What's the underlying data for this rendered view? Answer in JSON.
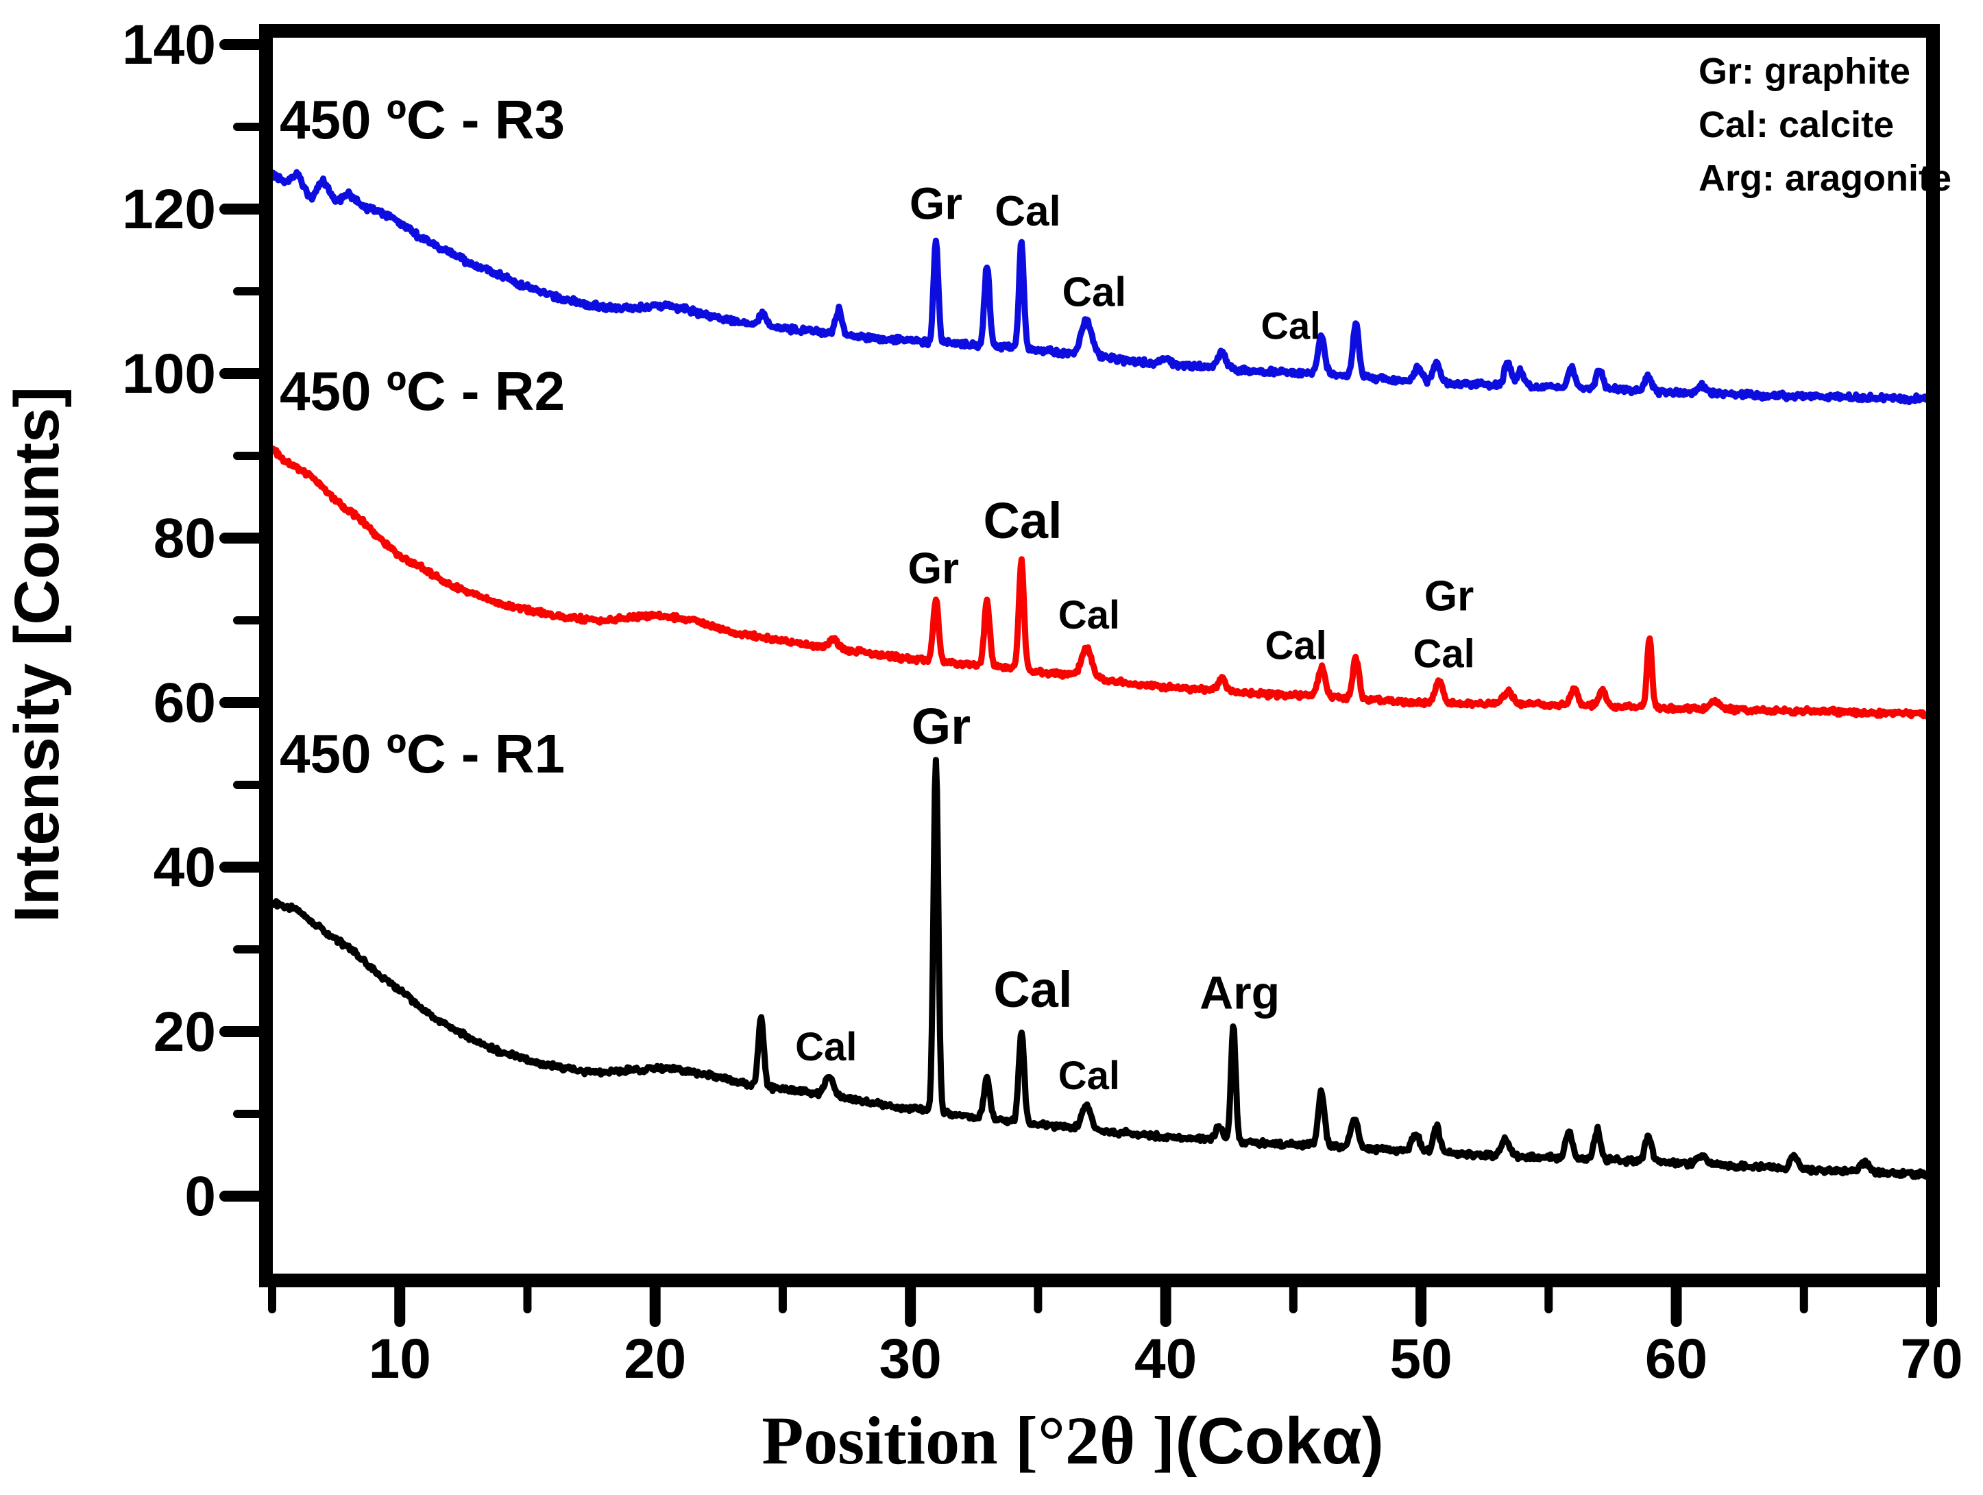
{
  "figure": {
    "ylabel": "Intensity [Counts]",
    "xlabel_serif": "Position [°2θ ]",
    "xlabel_sans": "(Cokα)"
  },
  "legend": {
    "items": [
      "Gr: graphite",
      "Cal: calcite",
      "Arg: aragonite"
    ]
  },
  "chart_data": {
    "type": "line",
    "title": "",
    "xlabel": "Position [°2θ ](Cokα)",
    "ylabel": "Intensity [Counts]",
    "xlim": [
      5,
      70
    ],
    "ylim": [
      -11,
      142
    ],
    "x_ticks": [
      10,
      20,
      30,
      40,
      50,
      60,
      70
    ],
    "x_minor_ticks": [
      5,
      15,
      25,
      35,
      45,
      55,
      65
    ],
    "y_ticks": [
      0,
      20,
      40,
      60,
      80,
      100,
      120,
      140
    ],
    "y_minor_ticks": [
      10,
      30,
      50,
      70,
      90,
      110,
      130
    ],
    "grid": false,
    "legend_position": "top-right",
    "legend_notes": [
      "Gr: graphite",
      "Cal: calcite",
      "Arg: aragonite"
    ],
    "series": [
      {
        "name": "450 ºC - R1",
        "label": "450 ºC - R1",
        "color": "#000000",
        "noise": 0.42,
        "seed": 3.1,
        "baseline": [
          [
            5,
            36
          ],
          [
            6,
            34.5
          ],
          [
            7,
            32.5
          ],
          [
            8,
            30
          ],
          [
            9,
            27.5
          ],
          [
            10,
            25
          ],
          [
            11,
            22.5
          ],
          [
            12,
            20.5
          ],
          [
            13,
            18.8
          ],
          [
            14,
            17.5
          ],
          [
            15,
            16.5
          ],
          [
            16,
            15.8
          ],
          [
            17,
            15.2
          ],
          [
            18,
            15
          ],
          [
            19,
            15.3
          ],
          [
            20,
            15.6
          ],
          [
            21,
            15.3
          ],
          [
            22,
            14.8
          ],
          [
            23,
            14
          ],
          [
            24,
            13.4
          ],
          [
            25,
            13
          ],
          [
            26,
            12.6
          ],
          [
            27,
            12.2
          ],
          [
            28,
            11.6
          ],
          [
            29,
            11
          ],
          [
            30,
            10.6
          ],
          [
            31,
            10.3
          ],
          [
            32,
            9.8
          ],
          [
            33,
            9.4
          ],
          [
            34,
            9.1
          ],
          [
            35,
            8.8
          ],
          [
            36,
            8.4
          ],
          [
            37,
            8.1
          ],
          [
            38,
            7.8
          ],
          [
            39,
            7.5
          ],
          [
            40,
            7.2
          ],
          [
            41,
            7.0
          ],
          [
            42,
            6.9
          ],
          [
            43,
            6.6
          ],
          [
            44,
            6.4
          ],
          [
            45,
            6.3
          ],
          [
            46,
            6.2
          ],
          [
            47,
            6.0
          ],
          [
            48,
            5.8
          ],
          [
            50,
            5.4
          ],
          [
            52,
            5.1
          ],
          [
            54,
            4.8
          ],
          [
            56,
            4.6
          ],
          [
            58,
            4.3
          ],
          [
            60,
            4.0
          ],
          [
            62,
            3.7
          ],
          [
            64,
            3.4
          ],
          [
            66,
            3.1
          ],
          [
            68,
            2.8
          ],
          [
            70,
            2.6
          ]
        ],
        "peaks": [
          [
            24.15,
            8.5,
            0.15
          ],
          [
            26.8,
            2.3,
            0.22
          ],
          [
            31.0,
            43,
            0.13
          ],
          [
            33.0,
            5,
            0.16
          ],
          [
            34.35,
            11,
            0.15
          ],
          [
            36.9,
            3,
            0.25
          ],
          [
            42.1,
            1.6,
            0.18
          ],
          [
            42.65,
            14,
            0.13
          ],
          [
            46.1,
            6.5,
            0.17
          ],
          [
            47.4,
            3.5,
            0.2
          ],
          [
            49.8,
            2.2,
            0.2
          ],
          [
            50.6,
            3.2,
            0.18
          ],
          [
            53.3,
            2.0,
            0.22
          ],
          [
            55.8,
            3.2,
            0.18
          ],
          [
            56.9,
            3.6,
            0.18
          ],
          [
            58.9,
            3.2,
            0.18
          ],
          [
            61.0,
            1.0,
            0.25
          ],
          [
            64.6,
            1.6,
            0.2
          ],
          [
            67.4,
            1.2,
            0.25
          ]
        ],
        "annotations": [
          {
            "text": "Cal",
            "x": 26.7,
            "y": 16.5,
            "size": 58
          },
          {
            "text": "Gr",
            "x": 31.2,
            "y": 55.0,
            "size": 74
          },
          {
            "text": "Cal",
            "x": 34.8,
            "y": 23.0,
            "size": 74
          },
          {
            "text": "Cal",
            "x": 37.0,
            "y": 13.0,
            "size": 58
          },
          {
            "text": "Arg",
            "x": 42.9,
            "y": 22.8,
            "size": 68
          }
        ]
      },
      {
        "name": "450 ºC - R2",
        "label": "450 ºC - R2",
        "color": "#f80400",
        "noise": 0.4,
        "seed": 7.7,
        "baseline": [
          [
            5,
            91
          ],
          [
            6,
            88.5
          ],
          [
            7,
            86
          ],
          [
            8,
            83.5
          ],
          [
            9,
            80.5
          ],
          [
            10,
            78
          ],
          [
            11,
            76
          ],
          [
            12,
            74.3
          ],
          [
            13,
            73
          ],
          [
            14,
            72
          ],
          [
            15,
            71.2
          ],
          [
            16,
            70.6
          ],
          [
            17,
            70.2
          ],
          [
            18,
            70
          ],
          [
            19,
            70.3
          ],
          [
            20,
            70.6
          ],
          [
            21,
            70.3
          ],
          [
            22,
            69.5
          ],
          [
            23,
            68.5
          ],
          [
            24,
            68
          ],
          [
            25,
            67.5
          ],
          [
            26,
            67
          ],
          [
            27,
            66.6
          ],
          [
            28,
            66.2
          ],
          [
            29,
            65.7
          ],
          [
            30,
            65.3
          ],
          [
            31,
            65
          ],
          [
            32,
            64.7
          ],
          [
            33,
            64.4
          ],
          [
            34,
            64.2
          ],
          [
            35,
            63.8
          ],
          [
            36,
            63.4
          ],
          [
            37,
            63
          ],
          [
            38,
            62.6
          ],
          [
            39,
            62.2
          ],
          [
            40,
            61.9
          ],
          [
            41,
            61.7
          ],
          [
            42,
            61.5
          ],
          [
            43,
            61.2
          ],
          [
            44,
            61
          ],
          [
            45,
            60.9
          ],
          [
            46,
            60.7
          ],
          [
            47,
            60.5
          ],
          [
            48,
            60.3
          ],
          [
            50,
            60
          ],
          [
            52,
            59.9
          ],
          [
            54,
            59.8
          ],
          [
            56,
            59.7
          ],
          [
            58,
            59.5
          ],
          [
            60,
            59.3
          ],
          [
            62,
            59.2
          ],
          [
            64,
            59
          ],
          [
            66,
            58.9
          ],
          [
            68,
            58.7
          ],
          [
            70,
            58.6
          ]
        ],
        "peaks": [
          [
            27.0,
            1.2,
            0.25
          ],
          [
            31.0,
            7.5,
            0.15
          ],
          [
            33.0,
            7.8,
            0.15
          ],
          [
            34.35,
            13.3,
            0.14
          ],
          [
            36.9,
            3.6,
            0.28
          ],
          [
            42.2,
            1.6,
            0.2
          ],
          [
            46.1,
            3.6,
            0.2
          ],
          [
            47.45,
            5.0,
            0.17
          ],
          [
            50.7,
            2.9,
            0.2
          ],
          [
            53.4,
            1.6,
            0.25
          ],
          [
            56.0,
            2.1,
            0.2
          ],
          [
            57.1,
            1.9,
            0.2
          ],
          [
            58.95,
            8.5,
            0.13
          ],
          [
            61.5,
            0.8,
            0.25
          ]
        ],
        "annotations": [
          {
            "text": "Gr",
            "x": 30.9,
            "y": 74.5,
            "size": 64
          },
          {
            "text": "Cal",
            "x": 34.4,
            "y": 80.0,
            "size": 74
          },
          {
            "text": "Cal",
            "x": 37.0,
            "y": 69.0,
            "size": 58
          },
          {
            "text": "Cal",
            "x": 45.1,
            "y": 65.3,
            "size": 58
          },
          {
            "text": "Gr",
            "x": 51.1,
            "y": 71.2,
            "size": 62
          },
          {
            "text": "Cal",
            "x": 50.9,
            "y": 64.3,
            "size": 58
          }
        ]
      },
      {
        "name": "450 ºC - R3",
        "label": "450 ºC - R3",
        "color": "#0d0de0",
        "noise": 0.45,
        "seed": 11.3,
        "baseline": [
          [
            5,
            124
          ],
          [
            5.5,
            123
          ],
          [
            6,
            124.5
          ],
          [
            6.5,
            121.5
          ],
          [
            7,
            123.5
          ],
          [
            7.5,
            120.5
          ],
          [
            8,
            122
          ],
          [
            8.5,
            120.5
          ],
          [
            9,
            120
          ],
          [
            10,
            118.3
          ],
          [
            11,
            116.3
          ],
          [
            12,
            114.5
          ],
          [
            13,
            113.2
          ],
          [
            14,
            111.8
          ],
          [
            15,
            110.5
          ],
          [
            16,
            109.4
          ],
          [
            17,
            108.6
          ],
          [
            18,
            108
          ],
          [
            19,
            107.9
          ],
          [
            20,
            108.3
          ],
          [
            21,
            107.9
          ],
          [
            22,
            107.2
          ],
          [
            23,
            106.4
          ],
          [
            24,
            105.9
          ],
          [
            25,
            105.5
          ],
          [
            26,
            105.2
          ],
          [
            27,
            104.9
          ],
          [
            28,
            104.5
          ],
          [
            29,
            104.2
          ],
          [
            30,
            104
          ],
          [
            31,
            103.8
          ],
          [
            32,
            103.6
          ],
          [
            33,
            103.4
          ],
          [
            34,
            103.2
          ],
          [
            35,
            102.9
          ],
          [
            36,
            102.5
          ],
          [
            37,
            102.2
          ],
          [
            38,
            101.8
          ],
          [
            39,
            101.4
          ],
          [
            40,
            101.1
          ],
          [
            41,
            100.9
          ],
          [
            42,
            100.7
          ],
          [
            43,
            100.4
          ],
          [
            44,
            100.2
          ],
          [
            45,
            100.1
          ],
          [
            46,
            100
          ],
          [
            47,
            99.8
          ],
          [
            48,
            99.5
          ],
          [
            50,
            99
          ],
          [
            52,
            98.7
          ],
          [
            54,
            98.5
          ],
          [
            56,
            98.3
          ],
          [
            58,
            98
          ],
          [
            60,
            97.7
          ],
          [
            62,
            97.5
          ],
          [
            64,
            97.3
          ],
          [
            66,
            97.2
          ],
          [
            68,
            97
          ],
          [
            70,
            96.9
          ]
        ],
        "peaks": [
          [
            24.2,
            1.4,
            0.2
          ],
          [
            27.2,
            2.9,
            0.17
          ],
          [
            31.0,
            12.3,
            0.13
          ],
          [
            33.0,
            9.8,
            0.14
          ],
          [
            34.35,
            13.0,
            0.13
          ],
          [
            36.9,
            4.2,
            0.3
          ],
          [
            40.0,
            0.8,
            0.25
          ],
          [
            42.2,
            2.0,
            0.2
          ],
          [
            46.1,
            4.6,
            0.18
          ],
          [
            47.45,
            6.3,
            0.16
          ],
          [
            49.9,
            1.8,
            0.2
          ],
          [
            50.6,
            2.4,
            0.18
          ],
          [
            53.4,
            2.8,
            0.18
          ],
          [
            53.9,
            1.8,
            0.2
          ],
          [
            55.9,
            2.6,
            0.18
          ],
          [
            57.0,
            2.2,
            0.18
          ],
          [
            58.9,
            1.8,
            0.2
          ],
          [
            61.0,
            0.9,
            0.25
          ]
        ],
        "annotations": [
          {
            "text": "Gr",
            "x": 31.0,
            "y": 118.8,
            "size": 66
          },
          {
            "text": "Cal",
            "x": 34.6,
            "y": 118.0,
            "size": 62
          },
          {
            "text": "Cal",
            "x": 37.2,
            "y": 108.2,
            "size": 60
          },
          {
            "text": "Cal",
            "x": 44.9,
            "y": 104.2,
            "size": 56
          }
        ]
      }
    ]
  }
}
